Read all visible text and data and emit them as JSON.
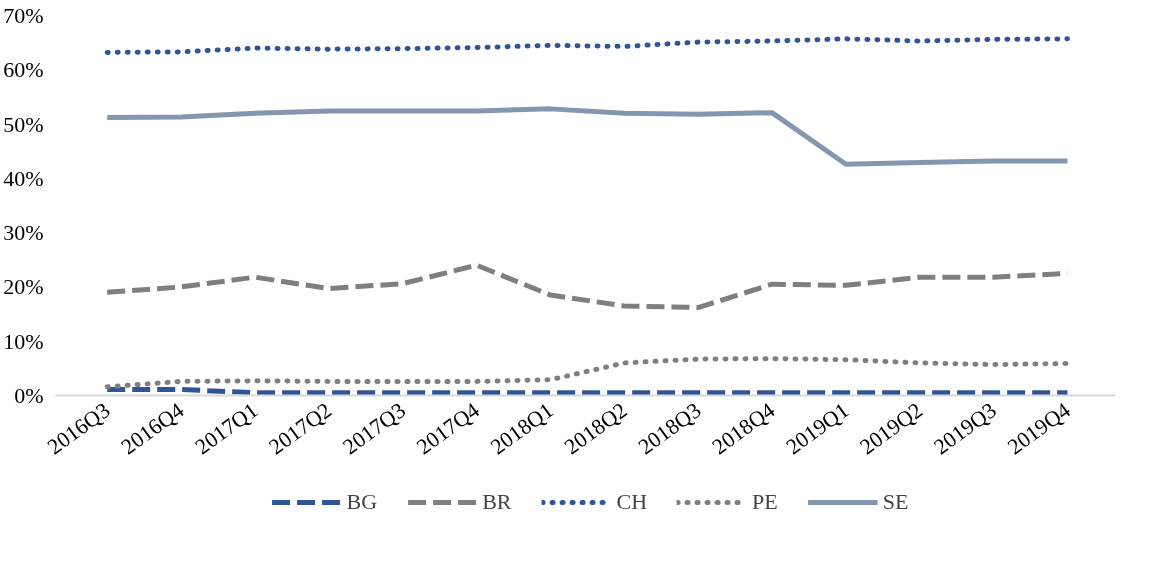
{
  "chart_data": {
    "type": "line",
    "categories": [
      "2016Q3",
      "2016Q4",
      "2017Q1",
      "2017Q2",
      "2017Q3",
      "2017Q4",
      "2018Q1",
      "2018Q2",
      "2018Q3",
      "2018Q4",
      "2019Q1",
      "2019Q2",
      "2019Q3",
      "2019Q4"
    ],
    "series": [
      {
        "name": "BG",
        "color": "#2f5597",
        "line_style": "dashed",
        "values": [
          1.1,
          1.1,
          0.5,
          0.5,
          0.5,
          0.5,
          0.5,
          0.5,
          0.5,
          0.5,
          0.5,
          0.5,
          0.5,
          0.5
        ]
      },
      {
        "name": "BR",
        "color": "#7f7f7f",
        "line_style": "dashed",
        "values": [
          19,
          20,
          21.8,
          19.7,
          20.6,
          24,
          18.5,
          16.5,
          16.2,
          20.5,
          20.3,
          21.8,
          21.8,
          22.5
        ]
      },
      {
        "name": "CH",
        "color": "#2f5597",
        "line_style": "dotted",
        "values": [
          63.2,
          63.3,
          64,
          63.8,
          63.9,
          64.1,
          64.5,
          64.3,
          65.1,
          65.3,
          65.7,
          65.3,
          65.6,
          65.7
        ]
      },
      {
        "name": "PE",
        "color": "#7f7f7f",
        "line_style": "dotted",
        "values": [
          1.6,
          2.6,
          2.7,
          2.6,
          2.6,
          2.6,
          2.9,
          6,
          6.7,
          6.8,
          6.6,
          6,
          5.7,
          5.9
        ]
      },
      {
        "name": "SE",
        "color": "#8497b0",
        "line_style": "solid",
        "values": [
          51.2,
          51.3,
          52,
          52.4,
          52.4,
          52.4,
          52.8,
          52,
          51.8,
          52.1,
          42.6,
          42.9,
          43.2,
          43.2
        ]
      }
    ],
    "ylim": [
      0,
      70
    ],
    "yticks": [
      {
        "value": 0,
        "label": "0%"
      },
      {
        "value": 10,
        "label": "10%"
      },
      {
        "value": 20,
        "label": "20%"
      },
      {
        "value": 30,
        "label": "30%"
      },
      {
        "value": 40,
        "label": "40%"
      },
      {
        "value": 50,
        "label": "50%"
      },
      {
        "value": 60,
        "label": "60%"
      },
      {
        "value": 70,
        "label": "70%"
      }
    ],
    "grid": false,
    "legend": "bottom",
    "marker": "none"
  }
}
